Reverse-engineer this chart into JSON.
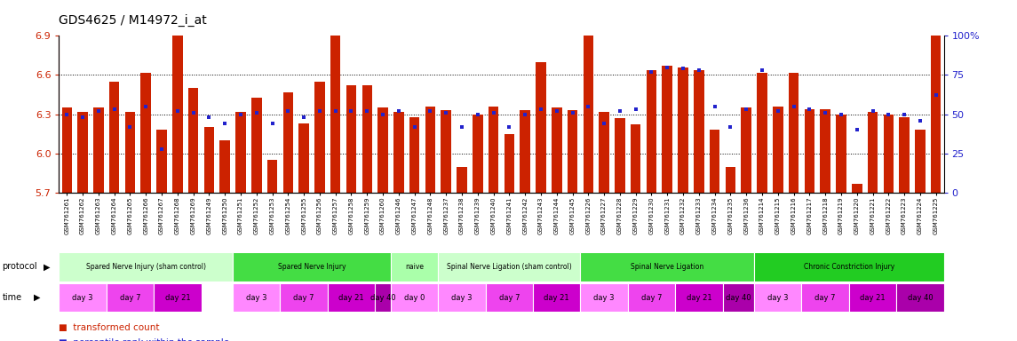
{
  "title": "GDS4625 / M14972_i_at",
  "ylim": [
    5.7,
    6.9
  ],
  "yticks": [
    5.7,
    6.0,
    6.3,
    6.6,
    6.9
  ],
  "y2lim": [
    0,
    100
  ],
  "y2ticks": [
    0,
    25,
    50,
    75,
    100
  ],
  "bar_color": "#CC2200",
  "dot_color": "#2222CC",
  "bg_color": "#FFFFFF",
  "sample_ids": [
    "GSM761261",
    "GSM761262",
    "GSM761263",
    "GSM761264",
    "GSM761265",
    "GSM761266",
    "GSM761267",
    "GSM761268",
    "GSM761269",
    "GSM761249",
    "GSM761250",
    "GSM761251",
    "GSM761252",
    "GSM761253",
    "GSM761254",
    "GSM761255",
    "GSM761256",
    "GSM761257",
    "GSM761258",
    "GSM761259",
    "GSM761260",
    "GSM761246",
    "GSM761247",
    "GSM761248",
    "GSM761237",
    "GSM761238",
    "GSM761239",
    "GSM761240",
    "GSM761241",
    "GSM761242",
    "GSM761243",
    "GSM761244",
    "GSM761245",
    "GSM761226",
    "GSM761227",
    "GSM761228",
    "GSM761229",
    "GSM761230",
    "GSM761231",
    "GSM761232",
    "GSM761233",
    "GSM761234",
    "GSM761235",
    "GSM761236",
    "GSM761214",
    "GSM761215",
    "GSM761216",
    "GSM761217",
    "GSM761218",
    "GSM761219",
    "GSM761220",
    "GSM761221",
    "GSM761222",
    "GSM761223",
    "GSM761224",
    "GSM761225"
  ],
  "bar_values": [
    6.35,
    6.32,
    6.35,
    6.55,
    6.32,
    6.62,
    6.18,
    6.91,
    6.5,
    6.2,
    6.1,
    6.32,
    6.43,
    5.95,
    6.47,
    6.23,
    6.55,
    6.92,
    6.52,
    6.52,
    6.35,
    6.32,
    6.28,
    6.36,
    6.33,
    5.9,
    6.3,
    6.36,
    6.15,
    6.33,
    6.7,
    6.35,
    6.33,
    6.96,
    6.32,
    6.27,
    6.22,
    6.64,
    6.67,
    6.66,
    6.64,
    6.18,
    5.9,
    6.35,
    6.62,
    6.36,
    6.62,
    6.34,
    6.34,
    6.3,
    5.77,
    6.32,
    6.3,
    6.28,
    6.18,
    7.0
  ],
  "dot_values": [
    50,
    48,
    52,
    53,
    42,
    55,
    28,
    52,
    51,
    48,
    44,
    50,
    51,
    44,
    52,
    48,
    52,
    52,
    52,
    52,
    50,
    52,
    42,
    52,
    51,
    42,
    50,
    51,
    42,
    50,
    53,
    52,
    51,
    55,
    44,
    52,
    53,
    77,
    80,
    79,
    78,
    55,
    42,
    53,
    78,
    52,
    55,
    53,
    51,
    50,
    40,
    52,
    50,
    50,
    46,
    62
  ],
  "protocols": [
    {
      "label": "Spared Nerve Injury (sham control)",
      "start": 0,
      "end": 11,
      "color": "#CCFFCC"
    },
    {
      "label": "Spared Nerve Injury",
      "start": 11,
      "end": 21,
      "color": "#44DD44"
    },
    {
      "label": "naive",
      "start": 21,
      "end": 24,
      "color": "#AAFFAA"
    },
    {
      "label": "Spinal Nerve Ligation (sham control)",
      "start": 24,
      "end": 33,
      "color": "#CCFFCC"
    },
    {
      "label": "Spinal Nerve Ligation",
      "start": 33,
      "end": 44,
      "color": "#44DD44"
    },
    {
      "label": "Chronic Constriction Injury",
      "start": 44,
      "end": 56,
      "color": "#22CC22"
    }
  ],
  "time_labels": [
    {
      "label": "day 3",
      "start": 0,
      "end": 3,
      "color": "#FF88FF"
    },
    {
      "label": "day 7",
      "start": 3,
      "end": 6,
      "color": "#EE44EE"
    },
    {
      "label": "day 21",
      "start": 6,
      "end": 9,
      "color": "#CC00CC"
    },
    {
      "label": "day 3",
      "start": 11,
      "end": 14,
      "color": "#FF88FF"
    },
    {
      "label": "day 7",
      "start": 14,
      "end": 17,
      "color": "#EE44EE"
    },
    {
      "label": "day 21",
      "start": 17,
      "end": 20,
      "color": "#CC00CC"
    },
    {
      "label": "day 40",
      "start": 20,
      "end": 21,
      "color": "#AA00AA"
    },
    {
      "label": "day 0",
      "start": 21,
      "end": 24,
      "color": "#FF88FF"
    },
    {
      "label": "day 3",
      "start": 24,
      "end": 27,
      "color": "#FF88FF"
    },
    {
      "label": "day 7",
      "start": 27,
      "end": 30,
      "color": "#EE44EE"
    },
    {
      "label": "day 21",
      "start": 30,
      "end": 33,
      "color": "#CC00CC"
    },
    {
      "label": "day 3",
      "start": 33,
      "end": 36,
      "color": "#FF88FF"
    },
    {
      "label": "day 7",
      "start": 36,
      "end": 39,
      "color": "#EE44EE"
    },
    {
      "label": "day 21",
      "start": 39,
      "end": 42,
      "color": "#CC00CC"
    },
    {
      "label": "day 40",
      "start": 42,
      "end": 44,
      "color": "#AA00AA"
    },
    {
      "label": "day 3",
      "start": 44,
      "end": 47,
      "color": "#FF88FF"
    },
    {
      "label": "day 7",
      "start": 47,
      "end": 50,
      "color": "#EE44EE"
    },
    {
      "label": "day 21",
      "start": 50,
      "end": 53,
      "color": "#CC00CC"
    },
    {
      "label": "day 40",
      "start": 53,
      "end": 56,
      "color": "#AA00AA"
    }
  ],
  "gridlines": [
    6.0,
    6.3,
    6.6
  ],
  "grid_style": ":"
}
